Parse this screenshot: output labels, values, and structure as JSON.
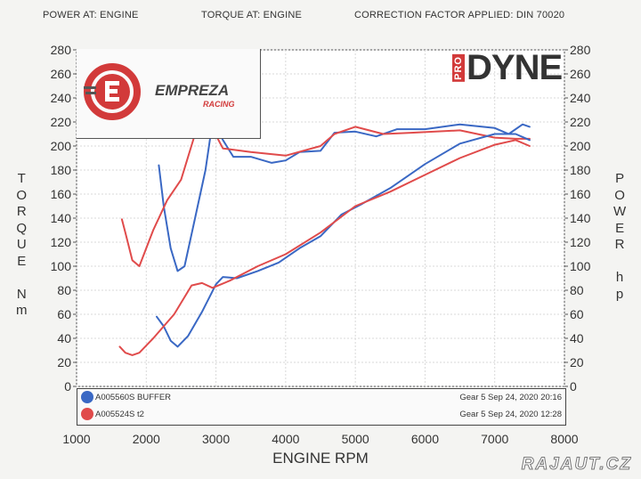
{
  "header": {
    "power_at": "POWER AT: ENGINE",
    "torque_at": "TORQUE AT: ENGINE",
    "correction": "CORRECTION FACTOR APPLIED: DIN 70020"
  },
  "left_axis_label": [
    "T",
    "O",
    "R",
    "Q",
    "U",
    "E",
    "",
    "N",
    "m"
  ],
  "right_axis_label": [
    "P",
    "O",
    "W",
    "E",
    "R",
    "",
    "h",
    "p"
  ],
  "branding": {
    "left_logo": "EMPREZA",
    "left_logo_sub": "RACING",
    "pro": "PRO",
    "dyne": "DYNE"
  },
  "watermark": "RAJAUT.CZ",
  "colors": {
    "blue": "#3a68c4",
    "red": "#e04b4b",
    "grid": "#d9d9d9"
  },
  "legend": [
    {
      "name": "A005560S BUFFER",
      "info": "Gear 5 Sep 24, 2020 20:16",
      "color": "#3a68c4"
    },
    {
      "name": "A005524S t2",
      "info": "Gear 5 Sep 24, 2020 12:28",
      "color": "#e04b4b"
    }
  ],
  "chart_data": {
    "type": "line",
    "title": "",
    "xlabel": "ENGINE RPM",
    "ylabel_left": "TORQUE Nm",
    "ylabel_right": "POWER hp",
    "xlim": [
      1000,
      8000
    ],
    "ylim": [
      0,
      280
    ],
    "x_ticks": [
      1000,
      2000,
      3000,
      4000,
      5000,
      6000,
      7000,
      8000
    ],
    "y_ticks": [
      0,
      20,
      40,
      60,
      80,
      100,
      120,
      140,
      160,
      180,
      200,
      220,
      240,
      260,
      280
    ],
    "grid": true,
    "series": [
      {
        "name": "A005560S BUFFER",
        "quantity": "torque",
        "color": "#3a68c4",
        "x": [
          2180,
          2250,
          2350,
          2450,
          2550,
          2700,
          2850,
          2950,
          3100,
          3250,
          3500,
          3800,
          4000,
          4200,
          4500,
          4700,
          5000,
          5300,
          5600,
          6000,
          6500,
          7000,
          7200,
          7400,
          7500
        ],
        "y": [
          184,
          150,
          115,
          96,
          100,
          140,
          180,
          220,
          205,
          191,
          191,
          186,
          188,
          195,
          196,
          211,
          212,
          208,
          214,
          214,
          218,
          215,
          210,
          218,
          216
        ]
      },
      {
        "name": "A005524S t2",
        "quantity": "torque",
        "color": "#e04b4b",
        "x": [
          1650,
          1700,
          1800,
          1900,
          2100,
          2300,
          2500,
          2700,
          2900,
          3100,
          3500,
          4000,
          4500,
          4700,
          5000,
          5400,
          5800,
          6500,
          7000,
          7300,
          7500
        ],
        "y": [
          139,
          128,
          105,
          100,
          130,
          155,
          172,
          210,
          220,
          198,
          195,
          192,
          200,
          210,
          216,
          210,
          211,
          213,
          207,
          206,
          206
        ]
      },
      {
        "name": "A005560S BUFFER",
        "quantity": "power",
        "color": "#3a68c4",
        "x": [
          2150,
          2250,
          2350,
          2450,
          2600,
          2800,
          3000,
          3100,
          3300,
          3600,
          3900,
          4200,
          4500,
          4800,
          5100,
          5500,
          6000,
          6500,
          7000,
          7300,
          7500
        ],
        "y": [
          58,
          50,
          38,
          33,
          42,
          62,
          85,
          91,
          90,
          96,
          103,
          115,
          125,
          143,
          152,
          165,
          185,
          202,
          210,
          210,
          205
        ]
      },
      {
        "name": "A005524S t2",
        "quantity": "power",
        "color": "#e04b4b",
        "x": [
          1620,
          1700,
          1800,
          1900,
          2100,
          2400,
          2650,
          2800,
          2950,
          3200,
          3600,
          4000,
          4500,
          5000,
          5500,
          6000,
          6500,
          7000,
          7300,
          7500
        ],
        "y": [
          33,
          28,
          26,
          28,
          40,
          60,
          84,
          86,
          82,
          88,
          100,
          110,
          128,
          150,
          162,
          176,
          190,
          201,
          205,
          200
        ]
      }
    ]
  }
}
